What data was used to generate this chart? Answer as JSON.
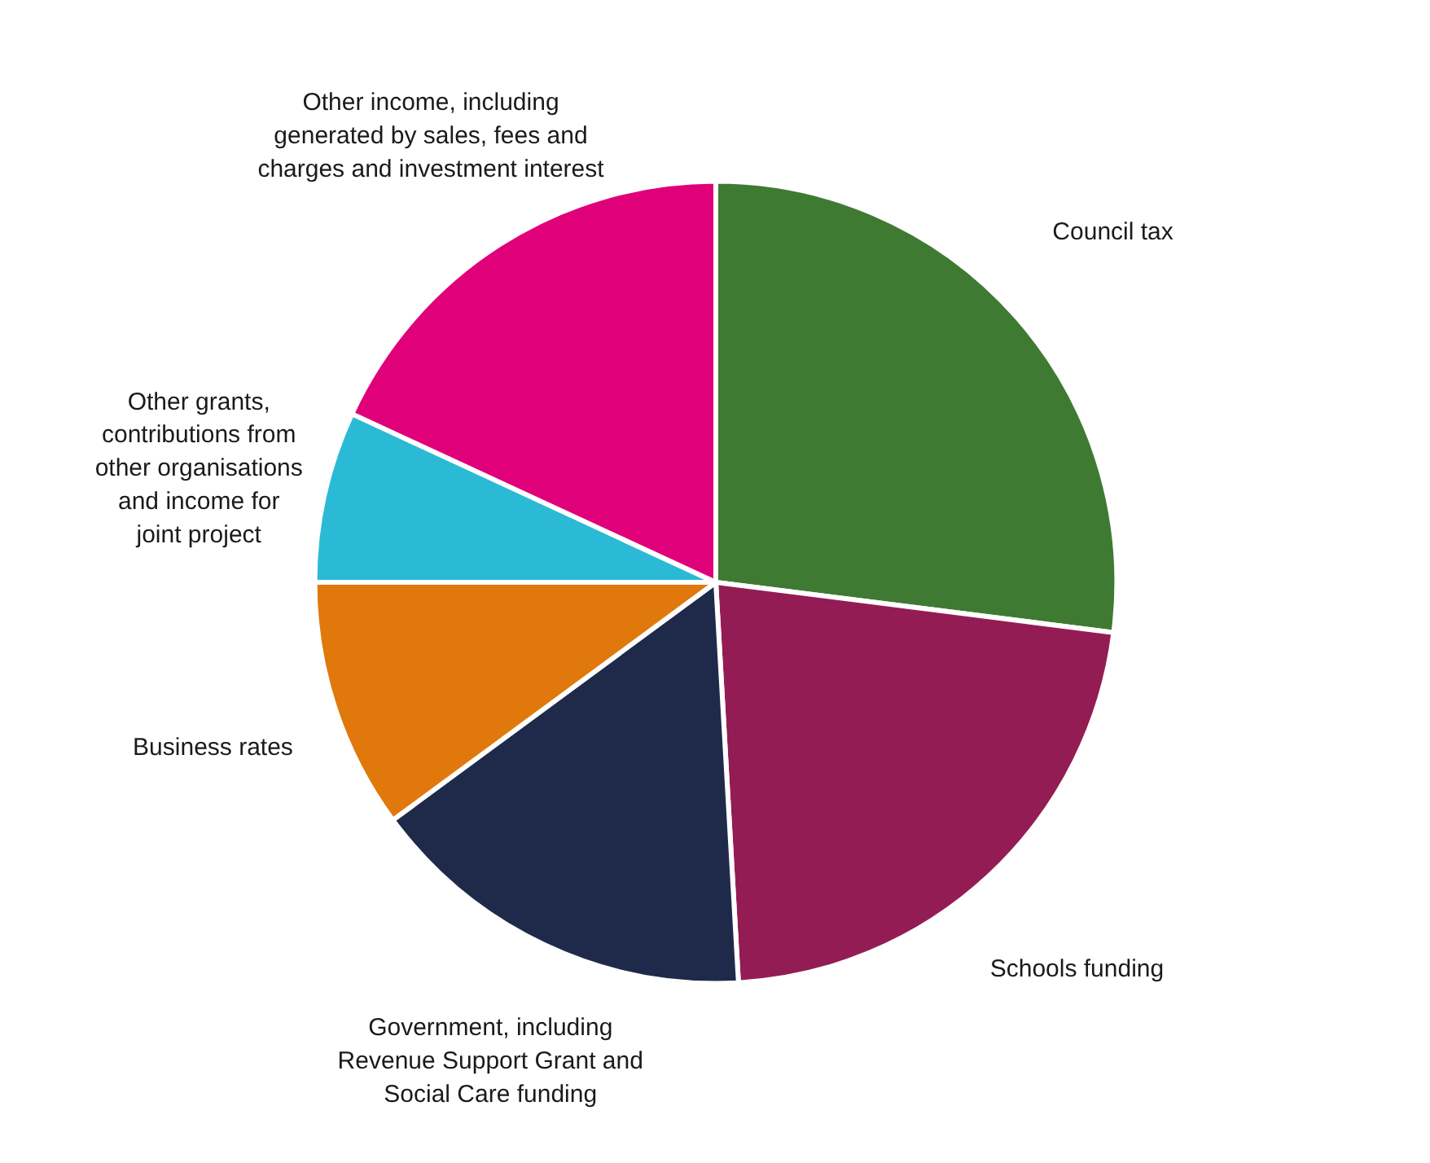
{
  "chart_data": {
    "type": "pie",
    "categories": [
      "Council tax",
      "Schools funding",
      "Government, including\nRevenue Support Grant and\nSocial Care funding",
      "Business rates",
      "Other grants,\ncontributions from\nother organisations\nand income for\njoint project",
      "Other income, including\ngenerated by sales, fees and\ncharges and investment interest"
    ],
    "values": [
      27.0,
      22.1,
      15.8,
      10.1,
      6.9,
      18.1
    ],
    "colors": [
      "#3f7a32",
      "#941c54",
      "#1f2a4b",
      "#e0780c",
      "#2bbad6",
      "#e0007a"
    ]
  }
}
